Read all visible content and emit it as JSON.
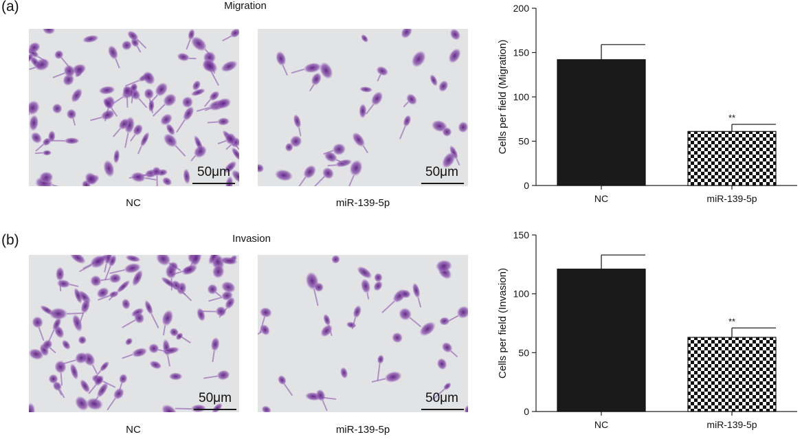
{
  "panels": [
    {
      "letter": "(a)",
      "title": "Migration",
      "images": [
        {
          "caption": "NC",
          "scale_label": "50μm",
          "cell_density": "high"
        },
        {
          "caption": "miR-139-5p",
          "scale_label": "50μm",
          "cell_density": "low"
        }
      ]
    },
    {
      "letter": "(b)",
      "title": "Invasion",
      "images": [
        {
          "caption": "NC",
          "scale_label": "50μm",
          "cell_density": "high"
        },
        {
          "caption": "miR-139-5p",
          "scale_label": "50μm",
          "cell_density": "low"
        }
      ]
    }
  ],
  "colors": {
    "stain": "#6a2e8c",
    "background": "#e2e3e5",
    "bar_fill": "#1a1a1a"
  },
  "chart_data": [
    {
      "type": "bar",
      "categories": [
        "NC",
        "miR-139-5p"
      ],
      "values": [
        142,
        61
      ],
      "errors": [
        17,
        8
      ],
      "annotations": [
        "",
        "**"
      ],
      "patterns": [
        "solid",
        "checkerboard"
      ],
      "ylabel": "Cells per field (Migration)",
      "xlabel": "",
      "ylim": [
        0,
        200
      ],
      "yticks": [
        0,
        50,
        100,
        150,
        200
      ]
    },
    {
      "type": "bar",
      "categories": [
        "NC",
        "miR-139-5p"
      ],
      "values": [
        121,
        63
      ],
      "errors": [
        12,
        8
      ],
      "annotations": [
        "",
        "**"
      ],
      "patterns": [
        "solid",
        "checkerboard"
      ],
      "ylabel": "Cells per field (Invasion)",
      "xlabel": "",
      "ylim": [
        0,
        150
      ],
      "yticks": [
        0,
        50,
        100,
        150
      ]
    }
  ]
}
